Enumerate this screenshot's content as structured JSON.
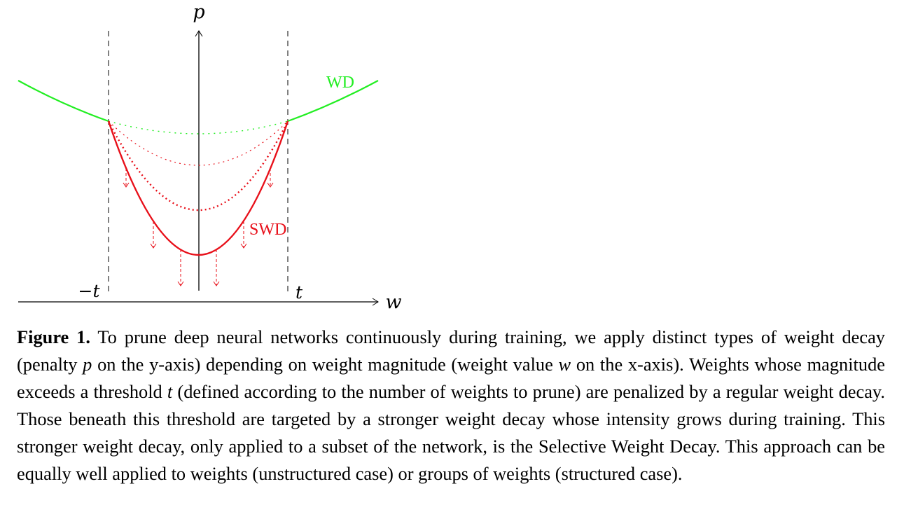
{
  "figure": {
    "axis_labels": {
      "y": "p",
      "x": "w"
    },
    "threshold_labels": {
      "neg": "−t",
      "pos": "t"
    },
    "curve_labels": {
      "wd": "WD",
      "swd": "SWD"
    },
    "colors": {
      "wd": "#22ee22",
      "swd": "#e8101a",
      "axis": "#000000"
    }
  },
  "caption": {
    "label": "Figure 1.",
    "seg1": " To prune deep neural networks continuously during training, we apply distinct types of weight decay (penalty ",
    "var_p": "p",
    "seg2": " on the y-axis) depending on weight magnitude (weight value ",
    "var_w": "w",
    "seg3": " on the x-axis). Weights whose magnitude exceeds a threshold ",
    "var_t": "t",
    "seg4": " (defined according to the number of weights to prune) are penalized by a regular weight decay. Those beneath this threshold are targeted by a stronger weight decay whose intensity grows during training. This stronger weight decay, only applied to a subset of the network, is the Selective Weight Decay. This approach can be equally well applied to weights (unstructured case) or groups of weights (structured case)."
  }
}
